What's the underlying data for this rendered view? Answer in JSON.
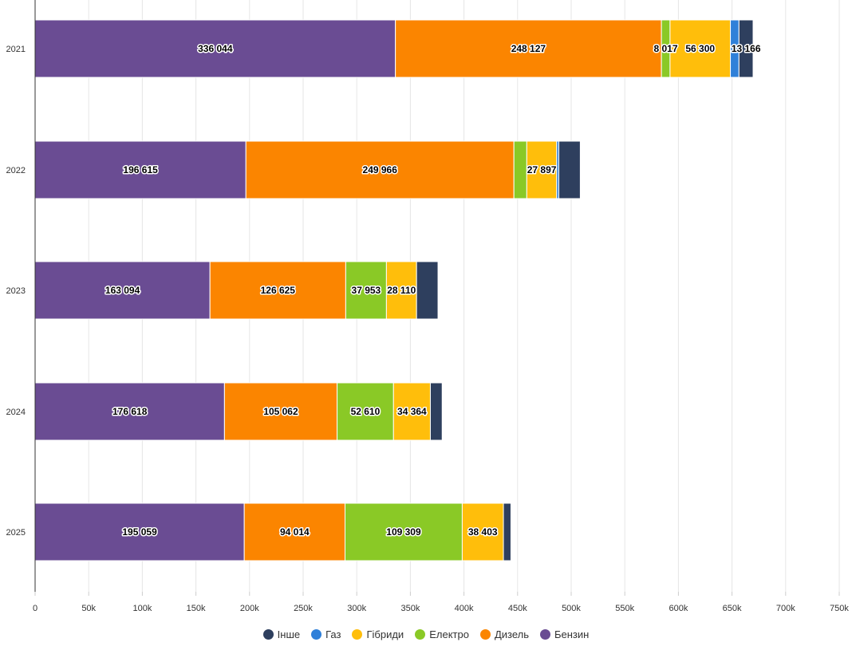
{
  "chart_data": {
    "type": "bar",
    "orientation": "horizontal",
    "stacked": true,
    "title": "",
    "xlabel": "",
    "ylabel": "",
    "categories": [
      "2021",
      "2022",
      "2023",
      "2024",
      "2025"
    ],
    "xlim": [
      0,
      750000
    ],
    "x_ticks": [
      0,
      50000,
      100000,
      150000,
      200000,
      250000,
      300000,
      350000,
      400000,
      450000,
      500000,
      550000,
      600000,
      650000,
      700000,
      750000
    ],
    "x_tick_labels": [
      "0",
      "50k",
      "100k",
      "150k",
      "200k",
      "250k",
      "300k",
      "350k",
      "400k",
      "450k",
      "500k",
      "550k",
      "600k",
      "650k",
      "700k",
      "750k"
    ],
    "grid": true,
    "legend_position": "bottom",
    "series": [
      {
        "name": "Бензин",
        "color": "#6a4c93",
        "values": [
          336044,
          196615,
          163094,
          176618,
          195059
        ],
        "labels": [
          "336 044",
          "196 615",
          "163 094",
          "176 618",
          "195 059"
        ]
      },
      {
        "name": "Дизель",
        "color": "#fb8500",
        "values": [
          248127,
          249966,
          126625,
          105062,
          94014
        ],
        "labels": [
          "248 127",
          "249 966",
          "126 625",
          "105 062",
          "94 014"
        ]
      },
      {
        "name": "Електро",
        "color": "#8ac926",
        "values": [
          8017,
          12000,
          37953,
          52610,
          109309
        ],
        "labels": [
          "8 017",
          "",
          "37 953",
          "52 610",
          "109 309"
        ]
      },
      {
        "name": "Гібриди",
        "color": "#ffbe0b",
        "values": [
          56300,
          27897,
          28110,
          34364,
          38403
        ],
        "labels": [
          "56 300",
          "27 897",
          "28 110",
          "34 364",
          "38 403"
        ]
      },
      {
        "name": "Газ",
        "color": "#2f80d9",
        "values": [
          8000,
          2000,
          0,
          0,
          0
        ],
        "labels": [
          "",
          "",
          "",
          "",
          ""
        ]
      },
      {
        "name": "Інше",
        "color": "#2e3f5e",
        "values": [
          13166,
          20000,
          20000,
          11000,
          7000
        ],
        "labels": [
          "13 166",
          "",
          "",
          "",
          ""
        ]
      }
    ],
    "legend_order": [
      "Інше",
      "Газ",
      "Гібриди",
      "Електро",
      "Дизель",
      "Бензин"
    ]
  }
}
